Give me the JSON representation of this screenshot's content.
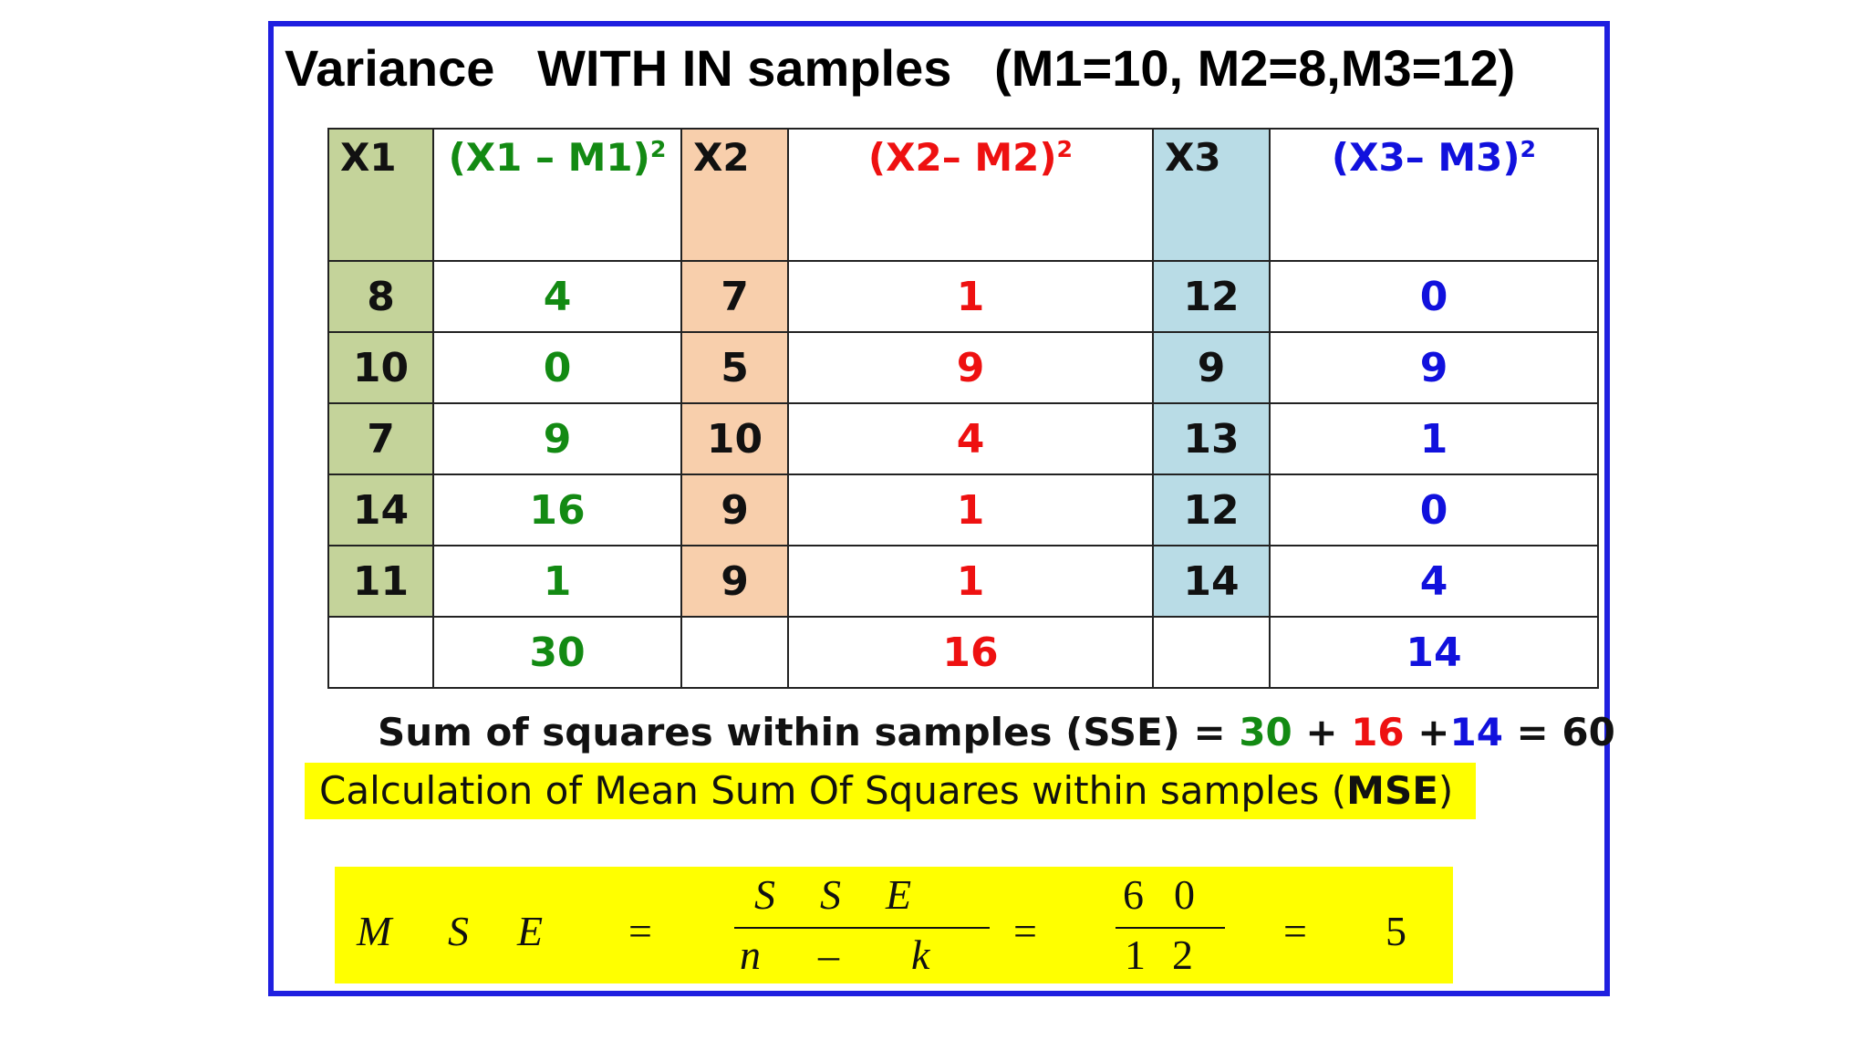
{
  "title": "Variance   WITH IN samples   (M1=10, M2=8,M3=12)",
  "table": {
    "headers": {
      "x1": "X1",
      "d1": "(X1 – M1)",
      "x2": "X2",
      "d2": "(X2– M2)",
      "x3": "X3",
      "d3": "(X3– M3)",
      "sq": "2"
    },
    "rows": [
      [
        "8",
        "4",
        "7",
        "1",
        "12",
        "0"
      ],
      [
        "10",
        "0",
        "5",
        "9",
        "9",
        "9"
      ],
      [
        "7",
        "9",
        "10",
        "4",
        "13",
        "1"
      ],
      [
        "14",
        "16",
        "9",
        "1",
        "12",
        "0"
      ],
      [
        "11",
        "1",
        "9",
        "1",
        "14",
        "4"
      ]
    ],
    "totals": [
      "30",
      "16",
      "14"
    ]
  },
  "sse": {
    "label": "Sum of squares within samples (SSE) = ",
    "a": "30",
    "plus1": " + ",
    "b": "16",
    "plus2": " +",
    "c": "14",
    "result": " = 60"
  },
  "mse_heading": {
    "text": "Calculation of Mean Sum Of Squares within samples (",
    "bold": "MSE",
    "close": ")"
  },
  "formula": {
    "M": "M",
    "S": "S",
    "E": "E",
    "eq": "=",
    "num_s1": "S",
    "num_s2": "S",
    "num_e": "E",
    "den_n": "n",
    "den_minus": "–",
    "den_k": "k",
    "num_6": "6",
    "num_0": "0",
    "den_1": "1",
    "den_2": "2",
    "result": "5"
  },
  "colors": {
    "frame": "#1f1fe0",
    "green": "#138a13",
    "red": "#ee1111",
    "blue": "#1111dd",
    "highlight": "#ffff00"
  }
}
